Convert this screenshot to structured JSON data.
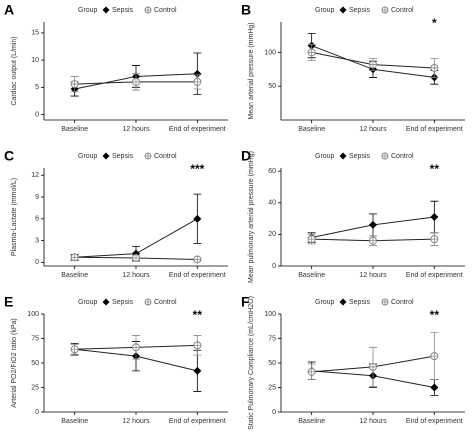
{
  "chart_data": [
    {
      "type": "line",
      "label": "A",
      "legend_title": "Group",
      "ylabel": "Cardiac output (L/min)",
      "categories": [
        "Baseline",
        "12 hours",
        "End of experiment"
      ],
      "series": [
        {
          "name": "Sepsis",
          "color": "#000000",
          "values": [
            4.7,
            7.0,
            7.5
          ],
          "errors": [
            1.3,
            2.0,
            3.8
          ]
        },
        {
          "name": "Control",
          "color": "#888888",
          "values": [
            5.6,
            6.0,
            6.0
          ],
          "errors": [
            1.4,
            1.5,
            1.3
          ]
        }
      ],
      "ylim": [
        -1,
        17
      ],
      "yticks": [
        0,
        5,
        10,
        15
      ]
    },
    {
      "type": "line",
      "label": "B",
      "legend_title": "Group",
      "ylabel": "Mean arterial pressure (mmHg)",
      "categories": [
        "Baseline",
        "12 hours",
        "End of experiment"
      ],
      "series": [
        {
          "name": "Sepsis",
          "color": "#000000",
          "values": [
            110,
            75,
            63
          ],
          "errors": [
            18,
            12,
            10
          ]
        },
        {
          "name": "Control",
          "color": "#888888",
          "values": [
            100,
            82,
            77
          ],
          "errors": [
            12,
            9,
            14
          ]
        }
      ],
      "ylim": [
        0,
        145
      ],
      "yticks": [
        50,
        100
      ],
      "annotation": "*"
    },
    {
      "type": "line",
      "label": "C",
      "legend_title": "Group",
      "ylabel": "Plasma-Lactate (mmol/L)",
      "categories": [
        "Baseline",
        "12 hours",
        "End of experiment"
      ],
      "series": [
        {
          "name": "Sepsis",
          "color": "#000000",
          "values": [
            0.7,
            1.2,
            6.0
          ],
          "errors": [
            0.4,
            1.0,
            3.4
          ]
        },
        {
          "name": "Control",
          "color": "#888888",
          "values": [
            0.7,
            0.6,
            0.4
          ],
          "errors": [
            0.3,
            0.3,
            0.2
          ]
        }
      ],
      "ylim": [
        -0.5,
        13
      ],
      "yticks": [
        0,
        3,
        6,
        9,
        12
      ],
      "annotation": "***"
    },
    {
      "type": "line",
      "label": "D",
      "legend_title": "Group",
      "ylabel": "Mean pulmonary arterial pressure (mmHg)",
      "categories": [
        "Baseline",
        "12 hours",
        "End of experiment"
      ],
      "series": [
        {
          "name": "Sepsis",
          "color": "#000000",
          "values": [
            18,
            26,
            31
          ],
          "errors": [
            3,
            7,
            10
          ]
        },
        {
          "name": "Control",
          "color": "#888888",
          "values": [
            17,
            16,
            17
          ],
          "errors": [
            3,
            3,
            4
          ]
        }
      ],
      "ylim": [
        0,
        62
      ],
      "yticks": [
        0,
        20,
        40,
        60
      ],
      "annotation": "**"
    },
    {
      "type": "line",
      "label": "E",
      "legend_title": "Group",
      "ylabel": "Arterial PO2/FiO2 ratio (kPa)",
      "categories": [
        "Baseline",
        "12 hours",
        "End of experiment"
      ],
      "series": [
        {
          "name": "Sepsis",
          "color": "#000000",
          "values": [
            64,
            57,
            42
          ],
          "errors": [
            6,
            15,
            21
          ]
        },
        {
          "name": "Control",
          "color": "#888888",
          "values": [
            64,
            66,
            68
          ],
          "errors": [
            5,
            12,
            10
          ]
        }
      ],
      "ylim": [
        0,
        100
      ],
      "yticks": [
        0,
        25,
        50,
        75,
        100
      ],
      "annotation": "**"
    },
    {
      "type": "line",
      "label": "F",
      "legend_title": "Group",
      "ylabel": "Static Pulmonary Compliance (mL/cmH2O)",
      "categories": [
        "Baseline",
        "12 hours",
        "End of experiment"
      ],
      "series": [
        {
          "name": "Sepsis",
          "color": "#000000",
          "values": [
            42,
            37,
            25
          ],
          "errors": [
            9,
            12,
            8
          ]
        },
        {
          "name": "Control",
          "color": "#888888",
          "values": [
            41,
            46,
            57
          ],
          "errors": [
            8,
            20,
            24
          ]
        }
      ],
      "ylim": [
        0,
        100
      ],
      "yticks": [
        0,
        25,
        50,
        75,
        100
      ],
      "annotation": "**"
    }
  ]
}
